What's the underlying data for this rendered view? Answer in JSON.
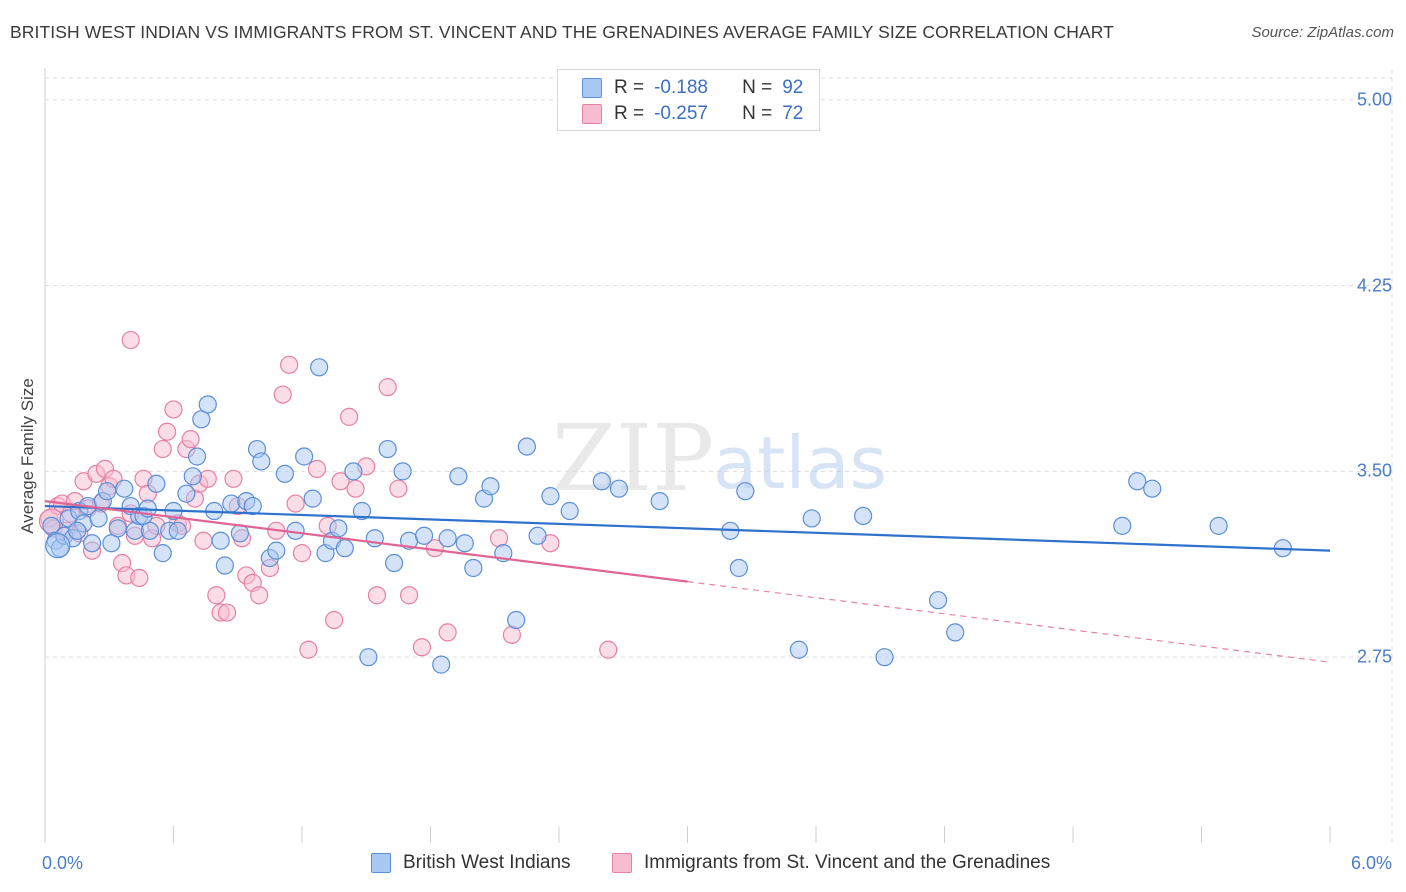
{
  "header": {
    "title": "BRITISH WEST INDIAN VS IMMIGRANTS FROM ST. VINCENT AND THE GRENADINES AVERAGE FAMILY SIZE CORRELATION CHART",
    "source": "Source: ZipAtlas.com"
  },
  "watermark": {
    "zip": "ZIP",
    "atlas": "atlas"
  },
  "stats": {
    "r_label": "R =",
    "n_label": "N =",
    "rows": [
      {
        "r": "-0.188",
        "n": "92"
      },
      {
        "r": "-0.257",
        "n": "72"
      }
    ]
  },
  "legend": {
    "items": [
      "British West Indians",
      "Immigrants from St. Vincent and the Grenadines"
    ]
  },
  "colors": {
    "blue_fill": "#a9c8f2",
    "blue_stroke": "#5b8fd6",
    "blue_line": "#2f72cc",
    "pink_fill": "#f8bcd0",
    "pink_stroke": "#e680a5",
    "pink_line": "#e06594",
    "tick_text": "#4a7cc9",
    "grid": "#dcdcdc"
  },
  "chart_data": {
    "type": "scatter",
    "title": "BRITISH WEST INDIAN VS IMMIGRANTS FROM ST. VINCENT AND THE GRENADINES AVERAGE FAMILY SIZE CORRELATION CHART",
    "xlabel": "",
    "ylabel": "Average Family Size",
    "xlim": [
      0,
      6
    ],
    "ylim": [
      2.0,
      5.12
    ],
    "x_unit": "%",
    "x_tick_labels": [
      "0.0%",
      "6.0%"
    ],
    "y_ticks": [
      2.75,
      3.5,
      4.25,
      5.0
    ],
    "y_tick_labels": [
      "2.75",
      "3.50",
      "4.25",
      "5.00"
    ],
    "grid": true,
    "legend_position": "bottom",
    "series": [
      {
        "name": "British West Indians",
        "color": "#a9c8f2",
        "trend": {
          "x": [
            0.0,
            6.0
          ],
          "y": [
            3.36,
            3.18
          ],
          "dashed_from": null
        },
        "points": [
          [
            0.03,
            3.28
          ],
          [
            0.05,
            3.22
          ],
          [
            0.07,
            3.19
          ],
          [
            0.09,
            3.24
          ],
          [
            0.11,
            3.31
          ],
          [
            0.13,
            3.23
          ],
          [
            0.16,
            3.34
          ],
          [
            0.18,
            3.29
          ],
          [
            0.2,
            3.36
          ],
          [
            0.22,
            3.21
          ],
          [
            0.25,
            3.31
          ],
          [
            0.27,
            3.38
          ],
          [
            0.29,
            3.42
          ],
          [
            0.31,
            3.21
          ],
          [
            0.34,
            3.27
          ],
          [
            0.37,
            3.43
          ],
          [
            0.4,
            3.36
          ],
          [
            0.42,
            3.26
          ],
          [
            0.44,
            3.32
          ],
          [
            0.46,
            3.32
          ],
          [
            0.48,
            3.35
          ],
          [
            0.49,
            3.26
          ],
          [
            0.52,
            3.45
          ],
          [
            0.55,
            3.17
          ],
          [
            0.58,
            3.26
          ],
          [
            0.62,
            3.26
          ],
          [
            0.66,
            3.41
          ],
          [
            0.69,
            3.48
          ],
          [
            0.71,
            3.56
          ],
          [
            0.73,
            3.71
          ],
          [
            0.76,
            3.77
          ],
          [
            0.79,
            3.34
          ],
          [
            0.82,
            3.22
          ],
          [
            0.84,
            3.12
          ],
          [
            0.87,
            3.37
          ],
          [
            0.91,
            3.25
          ],
          [
            0.94,
            3.38
          ],
          [
            0.99,
            3.59
          ],
          [
            1.01,
            3.54
          ],
          [
            1.05,
            3.15
          ],
          [
            1.08,
            3.18
          ],
          [
            1.12,
            3.49
          ],
          [
            1.17,
            3.26
          ],
          [
            1.21,
            3.56
          ],
          [
            1.25,
            3.39
          ],
          [
            1.28,
            3.92
          ],
          [
            1.31,
            3.17
          ],
          [
            1.34,
            3.22
          ],
          [
            1.37,
            3.27
          ],
          [
            1.4,
            3.19
          ],
          [
            1.44,
            3.5
          ],
          [
            1.48,
            3.34
          ],
          [
            1.51,
            2.75
          ],
          [
            1.54,
            3.23
          ],
          [
            1.6,
            3.59
          ],
          [
            1.63,
            3.13
          ],
          [
            1.67,
            3.5
          ],
          [
            1.7,
            3.22
          ],
          [
            1.77,
            3.24
          ],
          [
            1.85,
            2.72
          ],
          [
            1.88,
            3.23
          ],
          [
            1.93,
            3.48
          ],
          [
            1.96,
            3.21
          ],
          [
            2.0,
            3.11
          ],
          [
            2.05,
            3.39
          ],
          [
            2.08,
            3.44
          ],
          [
            2.14,
            3.17
          ],
          [
            2.2,
            2.9
          ],
          [
            2.25,
            3.6
          ],
          [
            2.3,
            3.24
          ],
          [
            2.36,
            3.4
          ],
          [
            2.45,
            3.34
          ],
          [
            2.6,
            3.46
          ],
          [
            2.68,
            3.43
          ],
          [
            2.87,
            3.38
          ],
          [
            3.2,
            3.26
          ],
          [
            3.24,
            3.11
          ],
          [
            3.27,
            3.42
          ],
          [
            3.52,
            2.78
          ],
          [
            3.58,
            3.31
          ],
          [
            3.82,
            3.32
          ],
          [
            3.92,
            2.75
          ],
          [
            4.17,
            2.98
          ],
          [
            4.25,
            2.85
          ],
          [
            5.03,
            3.28
          ],
          [
            5.1,
            3.46
          ],
          [
            5.17,
            3.43
          ],
          [
            5.48,
            3.28
          ],
          [
            5.78,
            3.19
          ],
          [
            0.15,
            3.26
          ],
          [
            0.6,
            3.34
          ],
          [
            0.97,
            3.36
          ]
        ]
      },
      {
        "name": "Immigrants from St. Vincent and the Grenadines",
        "color": "#f8bcd0",
        "trend": {
          "x": [
            0.0,
            6.0
          ],
          "y": [
            3.38,
            2.73
          ],
          "dashed_from": 3.0
        },
        "points": [
          [
            0.02,
            3.31
          ],
          [
            0.04,
            3.27
          ],
          [
            0.06,
            3.36
          ],
          [
            0.08,
            3.37
          ],
          [
            0.1,
            3.26
          ],
          [
            0.12,
            3.33
          ],
          [
            0.14,
            3.38
          ],
          [
            0.16,
            3.25
          ],
          [
            0.18,
            3.46
          ],
          [
            0.2,
            3.35
          ],
          [
            0.22,
            3.18
          ],
          [
            0.24,
            3.49
          ],
          [
            0.26,
            3.37
          ],
          [
            0.28,
            3.51
          ],
          [
            0.3,
            3.44
          ],
          [
            0.32,
            3.47
          ],
          [
            0.34,
            3.28
          ],
          [
            0.36,
            3.13
          ],
          [
            0.38,
            3.08
          ],
          [
            0.4,
            3.33
          ],
          [
            0.42,
            3.24
          ],
          [
            0.44,
            3.07
          ],
          [
            0.46,
            3.47
          ],
          [
            0.48,
            3.41
          ],
          [
            0.5,
            3.23
          ],
          [
            0.52,
            3.28
          ],
          [
            0.55,
            3.59
          ],
          [
            0.57,
            3.66
          ],
          [
            0.6,
            3.75
          ],
          [
            0.62,
            3.29
          ],
          [
            0.64,
            3.28
          ],
          [
            0.66,
            3.59
          ],
          [
            0.68,
            3.63
          ],
          [
            0.7,
            3.39
          ],
          [
            0.72,
            3.45
          ],
          [
            0.74,
            3.22
          ],
          [
            0.76,
            3.47
          ],
          [
            0.8,
            3.0
          ],
          [
            0.82,
            2.93
          ],
          [
            0.85,
            2.93
          ],
          [
            0.88,
            3.47
          ],
          [
            0.9,
            3.36
          ],
          [
            0.92,
            3.23
          ],
          [
            0.94,
            3.08
          ],
          [
            0.97,
            3.05
          ],
          [
            1.0,
            3.0
          ],
          [
            1.05,
            3.11
          ],
          [
            1.08,
            3.26
          ],
          [
            1.11,
            3.81
          ],
          [
            1.14,
            3.93
          ],
          [
            1.17,
            3.37
          ],
          [
            1.2,
            3.17
          ],
          [
            1.23,
            2.78
          ],
          [
            1.27,
            3.51
          ],
          [
            1.32,
            3.28
          ],
          [
            1.35,
            2.9
          ],
          [
            1.38,
            3.46
          ],
          [
            1.42,
            3.72
          ],
          [
            1.45,
            3.43
          ],
          [
            1.5,
            3.52
          ],
          [
            1.55,
            3.0
          ],
          [
            1.6,
            3.84
          ],
          [
            1.65,
            3.43
          ],
          [
            1.7,
            3.0
          ],
          [
            1.76,
            2.79
          ],
          [
            1.82,
            3.19
          ],
          [
            1.88,
            2.85
          ],
          [
            2.12,
            3.23
          ],
          [
            2.18,
            2.84
          ],
          [
            2.36,
            3.21
          ],
          [
            2.63,
            2.78
          ],
          [
            0.4,
            4.03
          ]
        ]
      }
    ]
  }
}
